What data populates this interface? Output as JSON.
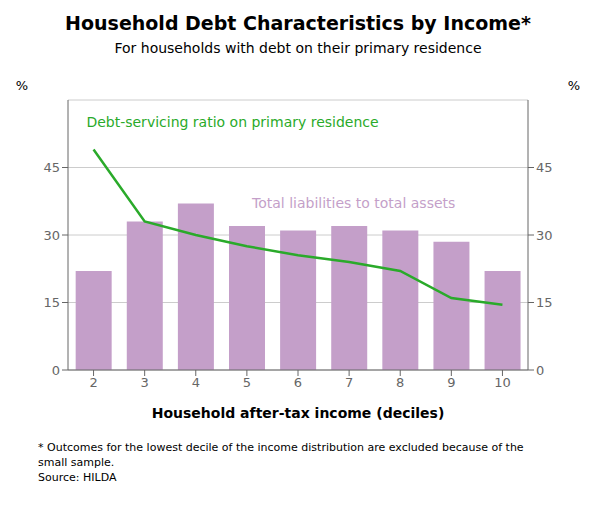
{
  "chart_data": {
    "type": "bar",
    "title": "Household Debt Characteristics by Income*",
    "subtitle": "For households with debt on their primary residence",
    "xlabel": "Household after-tax income (deciles)",
    "ylabel": "%",
    "y2label": "%",
    "footnote": "* Outcomes for the lowest decile of the income distribution are excluded because of the\nsmall sample.\nSource: HILDA",
    "categories": [
      2,
      3,
      4,
      5,
      6,
      7,
      8,
      9,
      10
    ],
    "series": [
      {
        "name": "Total liabilities to total assets",
        "type": "bar",
        "color": "#c49fc9",
        "values": [
          22,
          33,
          37,
          32,
          31,
          32,
          31,
          28.5,
          22
        ]
      },
      {
        "name": "Debt-servicing ratio on primary residence",
        "type": "line",
        "color": "#2aaa2a",
        "axis": "y2",
        "values": [
          49,
          33,
          30,
          27.5,
          25.5,
          24,
          22,
          16,
          14.5
        ]
      }
    ],
    "ylim": [
      0,
      60
    ],
    "yticks": [
      0,
      15,
      30,
      45
    ],
    "y2lim": [
      0,
      60
    ],
    "y2ticks": [
      0,
      15,
      30,
      45
    ],
    "grid": true
  }
}
